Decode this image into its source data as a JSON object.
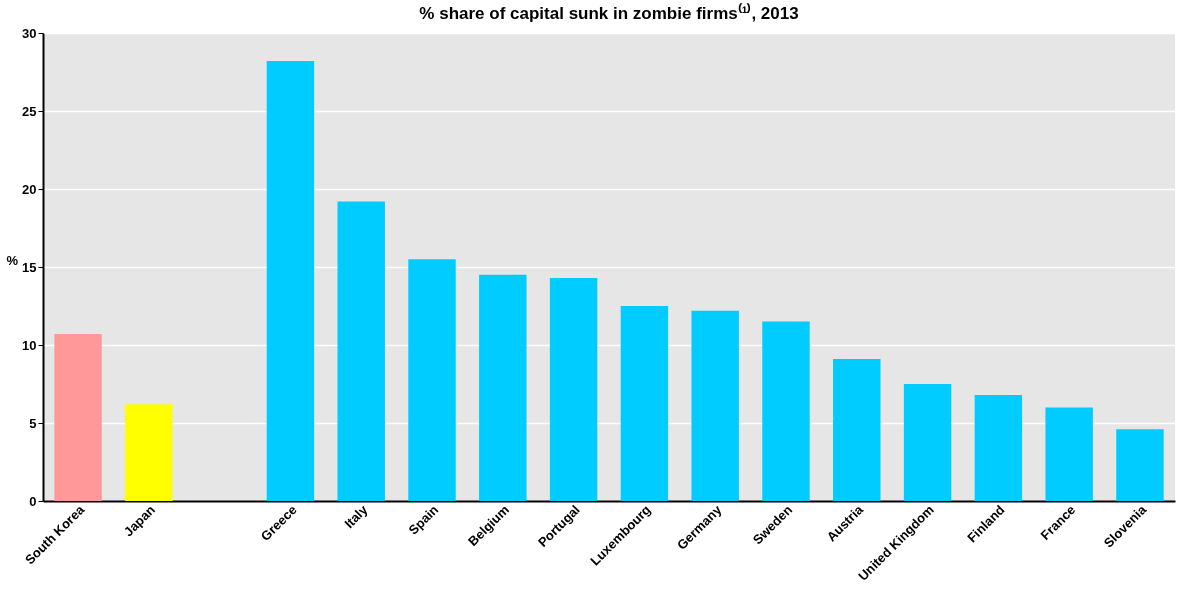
{
  "chart_data": {
    "type": "bar",
    "title": "% share of capital sunk in zombie firms⁽¹⁾, 2013",
    "ylabel": "%",
    "categories": [
      "South Korea",
      "Japan",
      null,
      "Greece",
      "Italy",
      "Spain",
      "Belgium",
      "Portugal",
      "Luxembourg",
      "Germany",
      "Sweden",
      "Austria",
      "United Kingdom",
      "Finland",
      "France",
      "Slovenia"
    ],
    "values": [
      10.7,
      6.2,
      null,
      28.2,
      19.2,
      15.5,
      14.5,
      14.3,
      12.5,
      12.2,
      11.5,
      9.1,
      7.5,
      6.8,
      6.0,
      4.6
    ],
    "colors": [
      "#ff9999",
      "#ffff00",
      "#00ccff",
      "#00ccff",
      "#00ccff",
      "#00ccff",
      "#00ccff",
      "#00ccff",
      "#00ccff",
      "#00ccff",
      "#00ccff",
      "#00ccff",
      "#00ccff",
      "#00ccff",
      "#00ccff",
      "#00ccff"
    ],
    "ylim": [
      0,
      30
    ],
    "yticks": [
      0,
      5,
      10,
      15,
      20,
      25,
      30
    ],
    "grid": "y"
  }
}
